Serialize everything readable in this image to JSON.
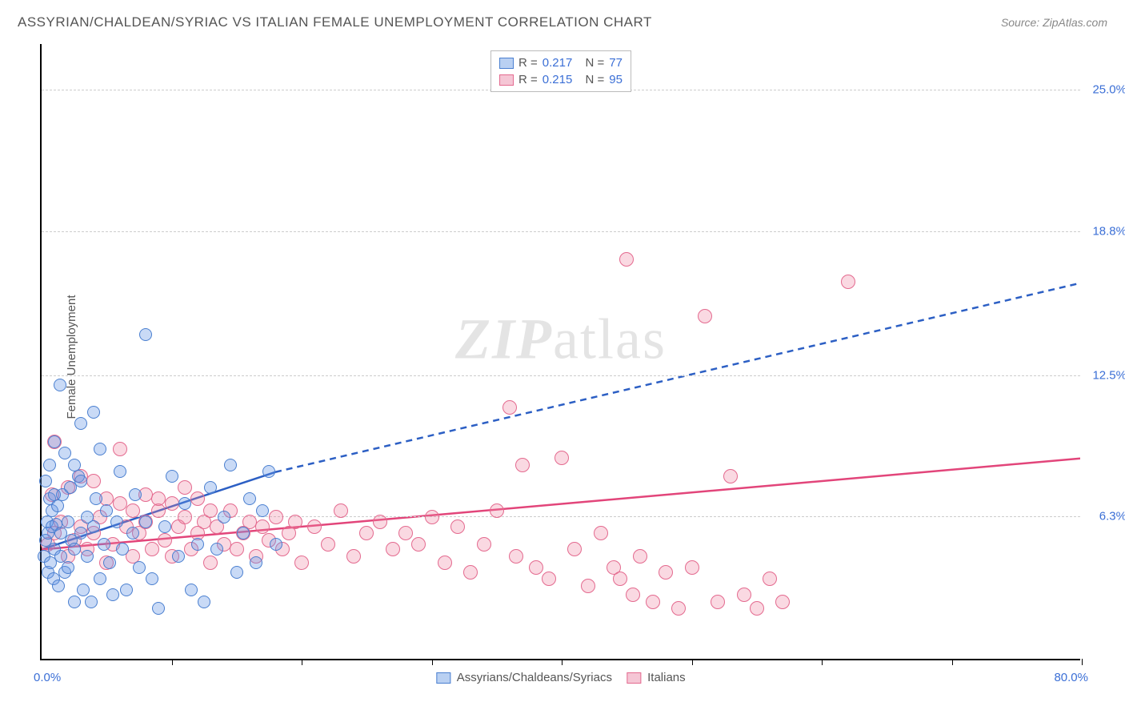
{
  "title": "ASSYRIAN/CHALDEAN/SYRIAC VS ITALIAN FEMALE UNEMPLOYMENT CORRELATION CHART",
  "source": "Source: ZipAtlas.com",
  "ylabel": "Female Unemployment",
  "watermark_zip": "ZIP",
  "watermark_atlas": "atlas",
  "chart": {
    "type": "scatter",
    "xlim": [
      0,
      80
    ],
    "ylim": [
      0,
      27
    ],
    "x_min_label": "0.0%",
    "x_max_label": "80.0%",
    "xtick_positions": [
      10,
      20,
      30,
      40,
      50,
      60,
      70,
      80
    ],
    "ygrid": [
      {
        "value": 6.3,
        "label": "6.3%"
      },
      {
        "value": 12.5,
        "label": "12.5%"
      },
      {
        "value": 18.8,
        "label": "18.8%"
      },
      {
        "value": 25.0,
        "label": "25.0%"
      }
    ],
    "series_a": {
      "name": "Assyrians/Chaldeans/Syriacs",
      "color_fill": "rgba(100,150,230,0.35)",
      "color_stroke": "#4a7fd0",
      "swatch_fill": "#b9d0f2",
      "swatch_border": "#4a7fd0",
      "r_label": "R =",
      "r_value": "0.217",
      "n_label": "N =",
      "n_value": "77",
      "trend": {
        "x1": 0,
        "y1": 4.8,
        "x2_solid": 18,
        "y2_solid": 8.2,
        "x2": 80,
        "y2": 16.5,
        "color": "#2c5fc4",
        "width": 2.5
      },
      "points": [
        [
          0.2,
          4.5
        ],
        [
          0.3,
          5.2
        ],
        [
          0.4,
          6.0
        ],
        [
          0.5,
          3.8
        ],
        [
          0.5,
          5.5
        ],
        [
          0.6,
          7.0
        ],
        [
          0.7,
          4.2
        ],
        [
          0.8,
          5.8
        ],
        [
          0.8,
          6.5
        ],
        [
          0.9,
          3.5
        ],
        [
          1.0,
          9.5
        ],
        [
          1.0,
          4.8
        ],
        [
          1.1,
          5.9
        ],
        [
          1.2,
          6.7
        ],
        [
          1.3,
          3.2
        ],
        [
          1.4,
          12.0
        ],
        [
          1.5,
          4.5
        ],
        [
          1.5,
          5.5
        ],
        [
          1.6,
          7.2
        ],
        [
          1.8,
          3.8
        ],
        [
          2.0,
          6.0
        ],
        [
          2.0,
          4.0
        ],
        [
          2.2,
          7.5
        ],
        [
          2.3,
          5.2
        ],
        [
          2.5,
          2.5
        ],
        [
          2.5,
          4.8
        ],
        [
          2.8,
          8.0
        ],
        [
          3.0,
          10.3
        ],
        [
          3.0,
          5.5
        ],
        [
          3.2,
          3.0
        ],
        [
          3.5,
          6.2
        ],
        [
          3.5,
          4.5
        ],
        [
          3.8,
          2.5
        ],
        [
          4.0,
          10.8
        ],
        [
          4.0,
          5.8
        ],
        [
          4.2,
          7.0
        ],
        [
          4.5,
          3.5
        ],
        [
          4.8,
          5.0
        ],
        [
          5.0,
          6.5
        ],
        [
          5.2,
          4.2
        ],
        [
          5.5,
          2.8
        ],
        [
          5.8,
          6.0
        ],
        [
          6.0,
          8.2
        ],
        [
          6.2,
          4.8
        ],
        [
          6.5,
          3.0
        ],
        [
          7.0,
          5.5
        ],
        [
          7.2,
          7.2
        ],
        [
          7.5,
          4.0
        ],
        [
          8.0,
          14.2
        ],
        [
          8.0,
          6.0
        ],
        [
          8.5,
          3.5
        ],
        [
          9.0,
          2.2
        ],
        [
          9.5,
          5.8
        ],
        [
          10.0,
          8.0
        ],
        [
          10.5,
          4.5
        ],
        [
          11.0,
          6.8
        ],
        [
          11.5,
          3.0
        ],
        [
          12.0,
          5.0
        ],
        [
          12.5,
          2.5
        ],
        [
          13.0,
          7.5
        ],
        [
          13.5,
          4.8
        ],
        [
          14.0,
          6.2
        ],
        [
          14.5,
          8.5
        ],
        [
          15.0,
          3.8
        ],
        [
          15.5,
          5.5
        ],
        [
          16.0,
          7.0
        ],
        [
          16.5,
          4.2
        ],
        [
          17.0,
          6.5
        ],
        [
          17.5,
          8.2
        ],
        [
          18.0,
          5.0
        ],
        [
          0.3,
          7.8
        ],
        [
          0.6,
          8.5
        ],
        [
          1.0,
          7.2
        ],
        [
          1.8,
          9.0
        ],
        [
          2.5,
          8.5
        ],
        [
          3.0,
          7.8
        ],
        [
          4.5,
          9.2
        ]
      ]
    },
    "series_b": {
      "name": "Italians",
      "color_fill": "rgba(240,130,160,0.30)",
      "color_stroke": "#e46a8f",
      "swatch_fill": "#f5c6d5",
      "swatch_border": "#e46a8f",
      "r_label": "R =",
      "r_value": "0.215",
      "n_label": "N =",
      "n_value": "95",
      "trend": {
        "x1": 0,
        "y1": 4.8,
        "x2": 80,
        "y2": 8.8,
        "color": "#e2457a",
        "width": 2.5
      },
      "points": [
        [
          0.5,
          5.0
        ],
        [
          1.0,
          5.5
        ],
        [
          1.5,
          6.0
        ],
        [
          2.0,
          4.5
        ],
        [
          2.5,
          5.2
        ],
        [
          3.0,
          5.8
        ],
        [
          3.5,
          4.8
        ],
        [
          4.0,
          5.5
        ],
        [
          4.5,
          6.2
        ],
        [
          5.0,
          4.2
        ],
        [
          5.5,
          5.0
        ],
        [
          6.0,
          9.2
        ],
        [
          6.5,
          5.8
        ],
        [
          7.0,
          4.5
        ],
        [
          7.5,
          5.5
        ],
        [
          8.0,
          6.0
        ],
        [
          8.5,
          4.8
        ],
        [
          9.0,
          6.5
        ],
        [
          9.5,
          5.2
        ],
        [
          10.0,
          4.5
        ],
        [
          10.5,
          5.8
        ],
        [
          11.0,
          6.2
        ],
        [
          11.5,
          4.8
        ],
        [
          12.0,
          5.5
        ],
        [
          12.5,
          6.0
        ],
        [
          13.0,
          4.2
        ],
        [
          13.5,
          5.8
        ],
        [
          14.0,
          5.0
        ],
        [
          14.5,
          6.5
        ],
        [
          15.0,
          4.8
        ],
        [
          15.5,
          5.5
        ],
        [
          16.0,
          6.0
        ],
        [
          16.5,
          4.5
        ],
        [
          17.0,
          5.8
        ],
        [
          17.5,
          5.2
        ],
        [
          18.0,
          6.2
        ],
        [
          18.5,
          4.8
        ],
        [
          19.0,
          5.5
        ],
        [
          19.5,
          6.0
        ],
        [
          20.0,
          4.2
        ],
        [
          21.0,
          5.8
        ],
        [
          22.0,
          5.0
        ],
        [
          23.0,
          6.5
        ],
        [
          24.0,
          4.5
        ],
        [
          25.0,
          5.5
        ],
        [
          26.0,
          6.0
        ],
        [
          27.0,
          4.8
        ],
        [
          28.0,
          5.5
        ],
        [
          29.0,
          5.0
        ],
        [
          30.0,
          6.2
        ],
        [
          31.0,
          4.2
        ],
        [
          32.0,
          5.8
        ],
        [
          33.0,
          3.8
        ],
        [
          34.0,
          5.0
        ],
        [
          35.0,
          6.5
        ],
        [
          36.0,
          11.0
        ],
        [
          36.5,
          4.5
        ],
        [
          37.0,
          8.5
        ],
        [
          38.0,
          4.0
        ],
        [
          39.0,
          3.5
        ],
        [
          40.0,
          8.8
        ],
        [
          41.0,
          4.8
        ],
        [
          42.0,
          3.2
        ],
        [
          43.0,
          5.5
        ],
        [
          44.0,
          4.0
        ],
        [
          44.5,
          3.5
        ],
        [
          45.0,
          17.5
        ],
        [
          45.5,
          2.8
        ],
        [
          46.0,
          4.5
        ],
        [
          47.0,
          2.5
        ],
        [
          48.0,
          3.8
        ],
        [
          49.0,
          2.2
        ],
        [
          50.0,
          4.0
        ],
        [
          51.0,
          15.0
        ],
        [
          52.0,
          2.5
        ],
        [
          53.0,
          8.0
        ],
        [
          54.0,
          2.8
        ],
        [
          55.0,
          2.2
        ],
        [
          56.0,
          3.5
        ],
        [
          57.0,
          2.5
        ],
        [
          62.0,
          16.5
        ],
        [
          1.0,
          9.5
        ],
        [
          2.0,
          7.5
        ],
        [
          3.0,
          8.0
        ],
        [
          0.8,
          7.2
        ],
        [
          4.0,
          7.8
        ],
        [
          5.0,
          7.0
        ],
        [
          6.0,
          6.8
        ],
        [
          7.0,
          6.5
        ],
        [
          8.0,
          7.2
        ],
        [
          9.0,
          7.0
        ],
        [
          10.0,
          6.8
        ],
        [
          11.0,
          7.5
        ],
        [
          12.0,
          7.0
        ],
        [
          13.0,
          6.5
        ]
      ]
    }
  }
}
